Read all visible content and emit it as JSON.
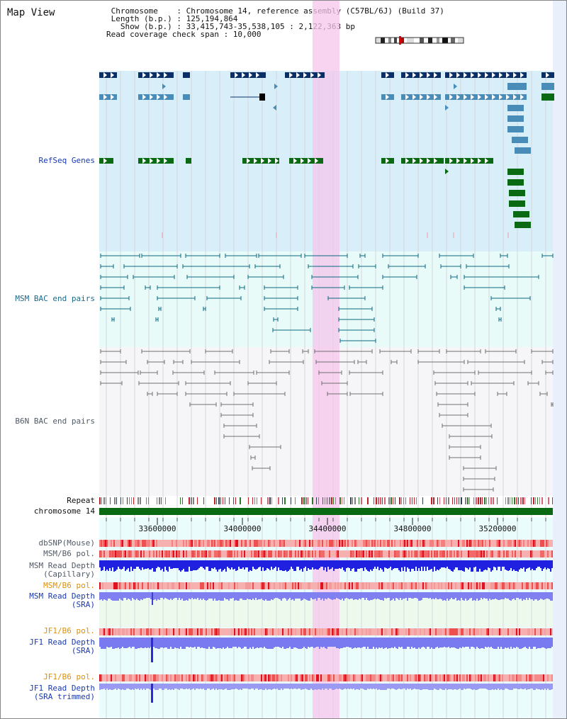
{
  "header": {
    "title": "Map View",
    "info_lines": [
      " Chromosome    : Chromosome 14, reference assembly (C57BL/6J) (Build 37)",
      " Length (b.p.) : 125,194,864",
      "   Show (b.p.) : 33,415,743-35,538,105 : 2,122,363 bp",
      "Read coverage check span : 10,000"
    ]
  },
  "tracks": {
    "refseq": {
      "label": "RefSeq Genes"
    },
    "msm_bac": {
      "label": "MSM BAC end pairs"
    },
    "b6n_bac": {
      "label": "B6N BAC end pairs"
    },
    "repeat": {
      "label": "Repeat"
    },
    "chromosome": {
      "label": "chromosome 14"
    },
    "dbsnp": {
      "label": "dbSNP(Mouse)"
    },
    "msm_b6_pol": {
      "label": "MSM/B6 pol."
    },
    "msm_depth_cap": {
      "label": "MSM Read Depth\n(Capillary)"
    },
    "msm_b6_pol_sra": {
      "label": "MSM/B6 pol."
    },
    "msm_depth_sra": {
      "label": "MSM Read Depth\n(SRA)"
    },
    "jf1_b6_pol": {
      "label": "JF1/B6 pol."
    },
    "jf1_depth_sra": {
      "label": "JF1 Read Depth\n(SRA)"
    },
    "jf1_b6_pol_2": {
      "label": "JF1/B6 pol."
    },
    "jf1_depth_trim": {
      "label": "JF1 Read Depth\n(SRA trimmed)"
    }
  },
  "axis": {
    "ticks": [
      "33600000",
      "34000000",
      "34400000",
      "34800000",
      "35200000"
    ]
  },
  "colors": {
    "gene_dark": "#0a2f66",
    "gene_mid": "#4a8cb8",
    "gene_green": "#0a6a14",
    "refseq_bg": "#d8eff9",
    "msm_bg": "#e8fbf8",
    "b6n_bg": "#f6f6f8",
    "msm_line": "#0a6a80",
    "b6n_line": "#707070",
    "highlight": "#f6c6ec",
    "label_blue": "#1a3ab0",
    "label_teal": "#1a6a8a",
    "label_gray": "#505a66",
    "label_orange": "#e09000",
    "depth_blue": "#2020e0",
    "depth_light": "#8080f0"
  }
}
